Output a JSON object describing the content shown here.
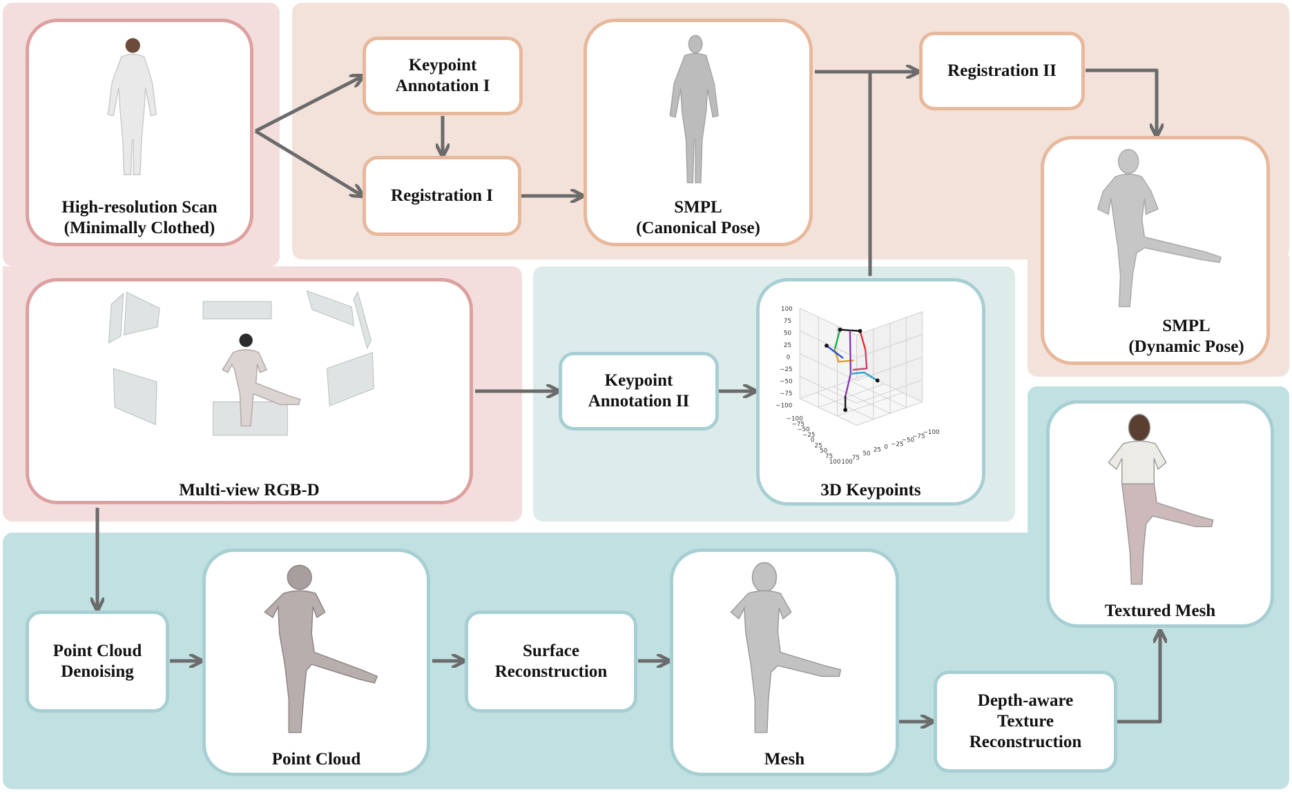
{
  "nodes": {
    "scan": {
      "label": "High-resolution Scan\n(Minimally Clothed)"
    },
    "kp1": {
      "label": "Keypoint\nAnnotation I"
    },
    "reg1": {
      "label": "Registration I"
    },
    "smpl_canon": {
      "label": "SMPL\n(Canonical Pose)"
    },
    "reg2": {
      "label": "Registration II"
    },
    "smpl_dyn": {
      "label": "SMPL\n(Dynamic Pose)"
    },
    "rgbd": {
      "label": "Multi-view RGB-D"
    },
    "kp2": {
      "label": "Keypoint\nAnnotation II"
    },
    "kp3d": {
      "label": "3D Keypoints"
    },
    "denoise": {
      "label": "Point Cloud\nDenoising"
    },
    "pointcloud": {
      "label": "Point Cloud"
    },
    "surface": {
      "label": "Surface\nReconstruction"
    },
    "mesh": {
      "label": "Mesh"
    },
    "depthtex": {
      "label": "Depth-aware\nTexture\nReconstruction"
    },
    "textured": {
      "label": "Textured Mesh"
    }
  },
  "plot3d": {
    "z_ticks": [
      "100",
      "75",
      "50",
      "25",
      "0",
      "−25",
      "−50",
      "−75",
      "−100"
    ],
    "x_ticks": [
      "−100",
      "−75",
      "−50",
      "−25",
      "0",
      "25",
      "50",
      "75",
      "100"
    ],
    "y_ticks": [
      "100",
      "75",
      "50",
      "25",
      "0",
      "−25",
      "−50",
      "−75",
      "−100"
    ]
  },
  "colors": {
    "region_pink": "#f4dedd",
    "region_peach": "#f3e2da",
    "region_teal_light": "#deebeb",
    "region_teal": "#c0e0e2",
    "arrow": "#6b6b6b"
  }
}
